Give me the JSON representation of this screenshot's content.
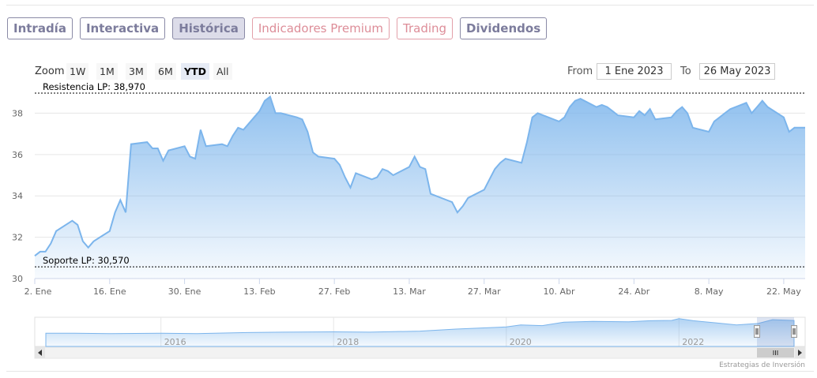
{
  "tabs": [
    {
      "label": "Intradía",
      "active": false,
      "premium": false
    },
    {
      "label": "Interactiva",
      "active": false,
      "premium": false
    },
    {
      "label": "Histórica",
      "active": true,
      "premium": false
    },
    {
      "label": "Indicadores Premium",
      "active": false,
      "premium": true
    },
    {
      "label": "Trading",
      "active": false,
      "premium": true
    },
    {
      "label": "Dividendos",
      "active": false,
      "premium": false
    }
  ],
  "zoom": {
    "label": "Zoom",
    "buttons": [
      "1W",
      "1M",
      "3M",
      "6M",
      "YTD",
      "All"
    ],
    "active": "YTD"
  },
  "range": {
    "from_label": "From",
    "from_value": "1 Ene 2023",
    "to_label": "To",
    "to_value": "26 May 2023"
  },
  "colors": {
    "line": "#7cb5ec",
    "tab_border": "#8a8aa6",
    "premium": "#dd8d98"
  },
  "credit": "Estrategias de Inversión",
  "chart_data": {
    "type": "area",
    "yticks": [
      30,
      32,
      34,
      36,
      38
    ],
    "ylim": [
      30,
      39.2
    ],
    "xticks": [
      "2. Ene",
      "16. Ene",
      "30. Ene",
      "13. Feb",
      "27. Feb",
      "13. Mar",
      "27. Mar",
      "10. Abr",
      "24. Abr",
      "8. May",
      "22. May"
    ],
    "x_tick_dates": [
      "2023-01-02",
      "2023-01-16",
      "2023-01-30",
      "2023-02-13",
      "2023-02-27",
      "2023-03-13",
      "2023-03-27",
      "2023-04-10",
      "2023-04-24",
      "2023-05-08",
      "2023-05-22"
    ],
    "xlim": [
      "2023-01-02",
      "2023-05-26"
    ],
    "grid": true,
    "plot_lines": [
      {
        "label": "Resistencia LP: 38,970",
        "value": 38.97
      },
      {
        "label": "Soporte LP: 30,570",
        "value": 30.57
      }
    ],
    "series": [
      {
        "values": [
          [
            "2023-01-02",
            31.1
          ],
          [
            "2023-01-03",
            31.3
          ],
          [
            "2023-01-04",
            31.3
          ],
          [
            "2023-01-05",
            31.7
          ],
          [
            "2023-01-06",
            32.3
          ],
          [
            "2023-01-09",
            32.8
          ],
          [
            "2023-01-10",
            32.6
          ],
          [
            "2023-01-11",
            31.8
          ],
          [
            "2023-01-12",
            31.5
          ],
          [
            "2023-01-13",
            31.8
          ],
          [
            "2023-01-16",
            32.3
          ],
          [
            "2023-01-17",
            33.2
          ],
          [
            "2023-01-18",
            33.8
          ],
          [
            "2023-01-19",
            33.2
          ],
          [
            "2023-01-20",
            36.5
          ],
          [
            "2023-01-23",
            36.6
          ],
          [
            "2023-01-24",
            36.3
          ],
          [
            "2023-01-25",
            36.3
          ],
          [
            "2023-01-26",
            35.7
          ],
          [
            "2023-01-27",
            36.2
          ],
          [
            "2023-01-30",
            36.4
          ],
          [
            "2023-01-31",
            35.9
          ],
          [
            "2023-02-01",
            35.8
          ],
          [
            "2023-02-02",
            37.2
          ],
          [
            "2023-02-03",
            36.4
          ],
          [
            "2023-02-06",
            36.5
          ],
          [
            "2023-02-07",
            36.4
          ],
          [
            "2023-02-08",
            36.9
          ],
          [
            "2023-02-09",
            37.3
          ],
          [
            "2023-02-10",
            37.2
          ],
          [
            "2023-02-13",
            38.1
          ],
          [
            "2023-02-14",
            38.6
          ],
          [
            "2023-02-15",
            38.8
          ],
          [
            "2023-02-16",
            38.0
          ],
          [
            "2023-02-17",
            38.0
          ],
          [
            "2023-02-20",
            37.8
          ],
          [
            "2023-02-21",
            37.7
          ],
          [
            "2023-02-22",
            37.1
          ],
          [
            "2023-02-23",
            36.1
          ],
          [
            "2023-02-24",
            35.9
          ],
          [
            "2023-02-27",
            35.8
          ],
          [
            "2023-02-28",
            35.5
          ],
          [
            "2023-03-01",
            34.9
          ],
          [
            "2023-03-02",
            34.4
          ],
          [
            "2023-03-03",
            35.1
          ],
          [
            "2023-03-06",
            34.8
          ],
          [
            "2023-03-07",
            34.9
          ],
          [
            "2023-03-08",
            35.3
          ],
          [
            "2023-03-09",
            35.2
          ],
          [
            "2023-03-10",
            35.0
          ],
          [
            "2023-03-13",
            35.4
          ],
          [
            "2023-03-14",
            35.9
          ],
          [
            "2023-03-15",
            35.4
          ],
          [
            "2023-03-16",
            35.3
          ],
          [
            "2023-03-17",
            34.1
          ],
          [
            "2023-03-20",
            33.8
          ],
          [
            "2023-03-21",
            33.7
          ],
          [
            "2023-03-22",
            33.2
          ],
          [
            "2023-03-23",
            33.5
          ],
          [
            "2023-03-24",
            33.9
          ],
          [
            "2023-03-27",
            34.3
          ],
          [
            "2023-03-28",
            34.8
          ],
          [
            "2023-03-29",
            35.3
          ],
          [
            "2023-03-30",
            35.6
          ],
          [
            "2023-03-31",
            35.8
          ],
          [
            "2023-04-03",
            35.6
          ],
          [
            "2023-04-04",
            36.6
          ],
          [
            "2023-04-05",
            37.8
          ],
          [
            "2023-04-06",
            38.0
          ],
          [
            "2023-04-10",
            37.6
          ],
          [
            "2023-04-11",
            37.8
          ],
          [
            "2023-04-12",
            38.3
          ],
          [
            "2023-04-13",
            38.6
          ],
          [
            "2023-04-14",
            38.7
          ],
          [
            "2023-04-17",
            38.3
          ],
          [
            "2023-04-18",
            38.4
          ],
          [
            "2023-04-19",
            38.3
          ],
          [
            "2023-04-20",
            38.1
          ],
          [
            "2023-04-21",
            37.9
          ],
          [
            "2023-04-24",
            37.8
          ],
          [
            "2023-04-25",
            38.1
          ],
          [
            "2023-04-26",
            37.9
          ],
          [
            "2023-04-27",
            38.2
          ],
          [
            "2023-04-28",
            37.7
          ],
          [
            "2023-05-01",
            37.8
          ],
          [
            "2023-05-02",
            38.1
          ],
          [
            "2023-05-03",
            38.3
          ],
          [
            "2023-05-04",
            38.0
          ],
          [
            "2023-05-05",
            37.3
          ],
          [
            "2023-05-08",
            37.1
          ],
          [
            "2023-05-09",
            37.6
          ],
          [
            "2023-05-10",
            37.8
          ],
          [
            "2023-05-11",
            38.0
          ],
          [
            "2023-05-12",
            38.2
          ],
          [
            "2023-05-15",
            38.5
          ],
          [
            "2023-05-16",
            38.0
          ],
          [
            "2023-05-17",
            38.3
          ],
          [
            "2023-05-18",
            38.6
          ],
          [
            "2023-05-19",
            38.3
          ],
          [
            "2023-05-22",
            37.8
          ],
          [
            "2023-05-23",
            37.1
          ],
          [
            "2023-05-24",
            37.3
          ],
          [
            "2023-05-25",
            37.3
          ],
          [
            "2023-05-26",
            37.3
          ]
        ]
      }
    ],
    "navigator": {
      "years": [
        "2016",
        "2018",
        "2020",
        "2022"
      ],
      "values": [
        [
          "2014-09",
          19
        ],
        [
          "2015-01",
          19
        ],
        [
          "2015-06",
          18.5
        ],
        [
          "2016-01",
          19
        ],
        [
          "2016-06",
          18.5
        ],
        [
          "2017-01",
          20
        ],
        [
          "2017-06",
          20.5
        ],
        [
          "2018-01",
          21
        ],
        [
          "2018-06",
          20.5
        ],
        [
          "2019-01",
          22
        ],
        [
          "2019-06",
          25
        ],
        [
          "2020-01",
          28
        ],
        [
          "2020-03",
          31
        ],
        [
          "2020-06",
          30
        ],
        [
          "2020-09",
          35
        ],
        [
          "2021-01",
          36
        ],
        [
          "2021-06",
          35.5
        ],
        [
          "2021-09",
          37
        ],
        [
          "2021-12",
          37.5
        ],
        [
          "2022-01",
          40
        ],
        [
          "2022-03",
          37
        ],
        [
          "2022-06",
          34
        ],
        [
          "2022-09",
          31
        ],
        [
          "2022-12",
          33
        ],
        [
          "2023-02",
          38.5
        ],
        [
          "2023-05",
          37.3
        ]
      ],
      "ylim": [
        0,
        42
      ]
    }
  }
}
